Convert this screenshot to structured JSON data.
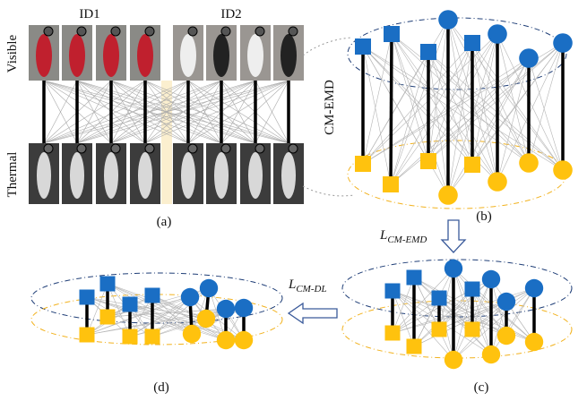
{
  "panel_a": {
    "group_labels": [
      "ID1",
      "ID2"
    ],
    "row_labels": [
      "Visible",
      "Thermal"
    ],
    "caption": "(a)"
  },
  "panel_b": {
    "side_label": "CM-EMD",
    "caption": "(b)"
  },
  "panel_c": {
    "caption": "(c)"
  },
  "panel_d": {
    "caption": "(d)"
  },
  "arrows": [
    {
      "symbol": "L",
      "subscript": "CM-EMD"
    },
    {
      "symbol": "L",
      "subscript": "CM-DL"
    }
  ]
}
